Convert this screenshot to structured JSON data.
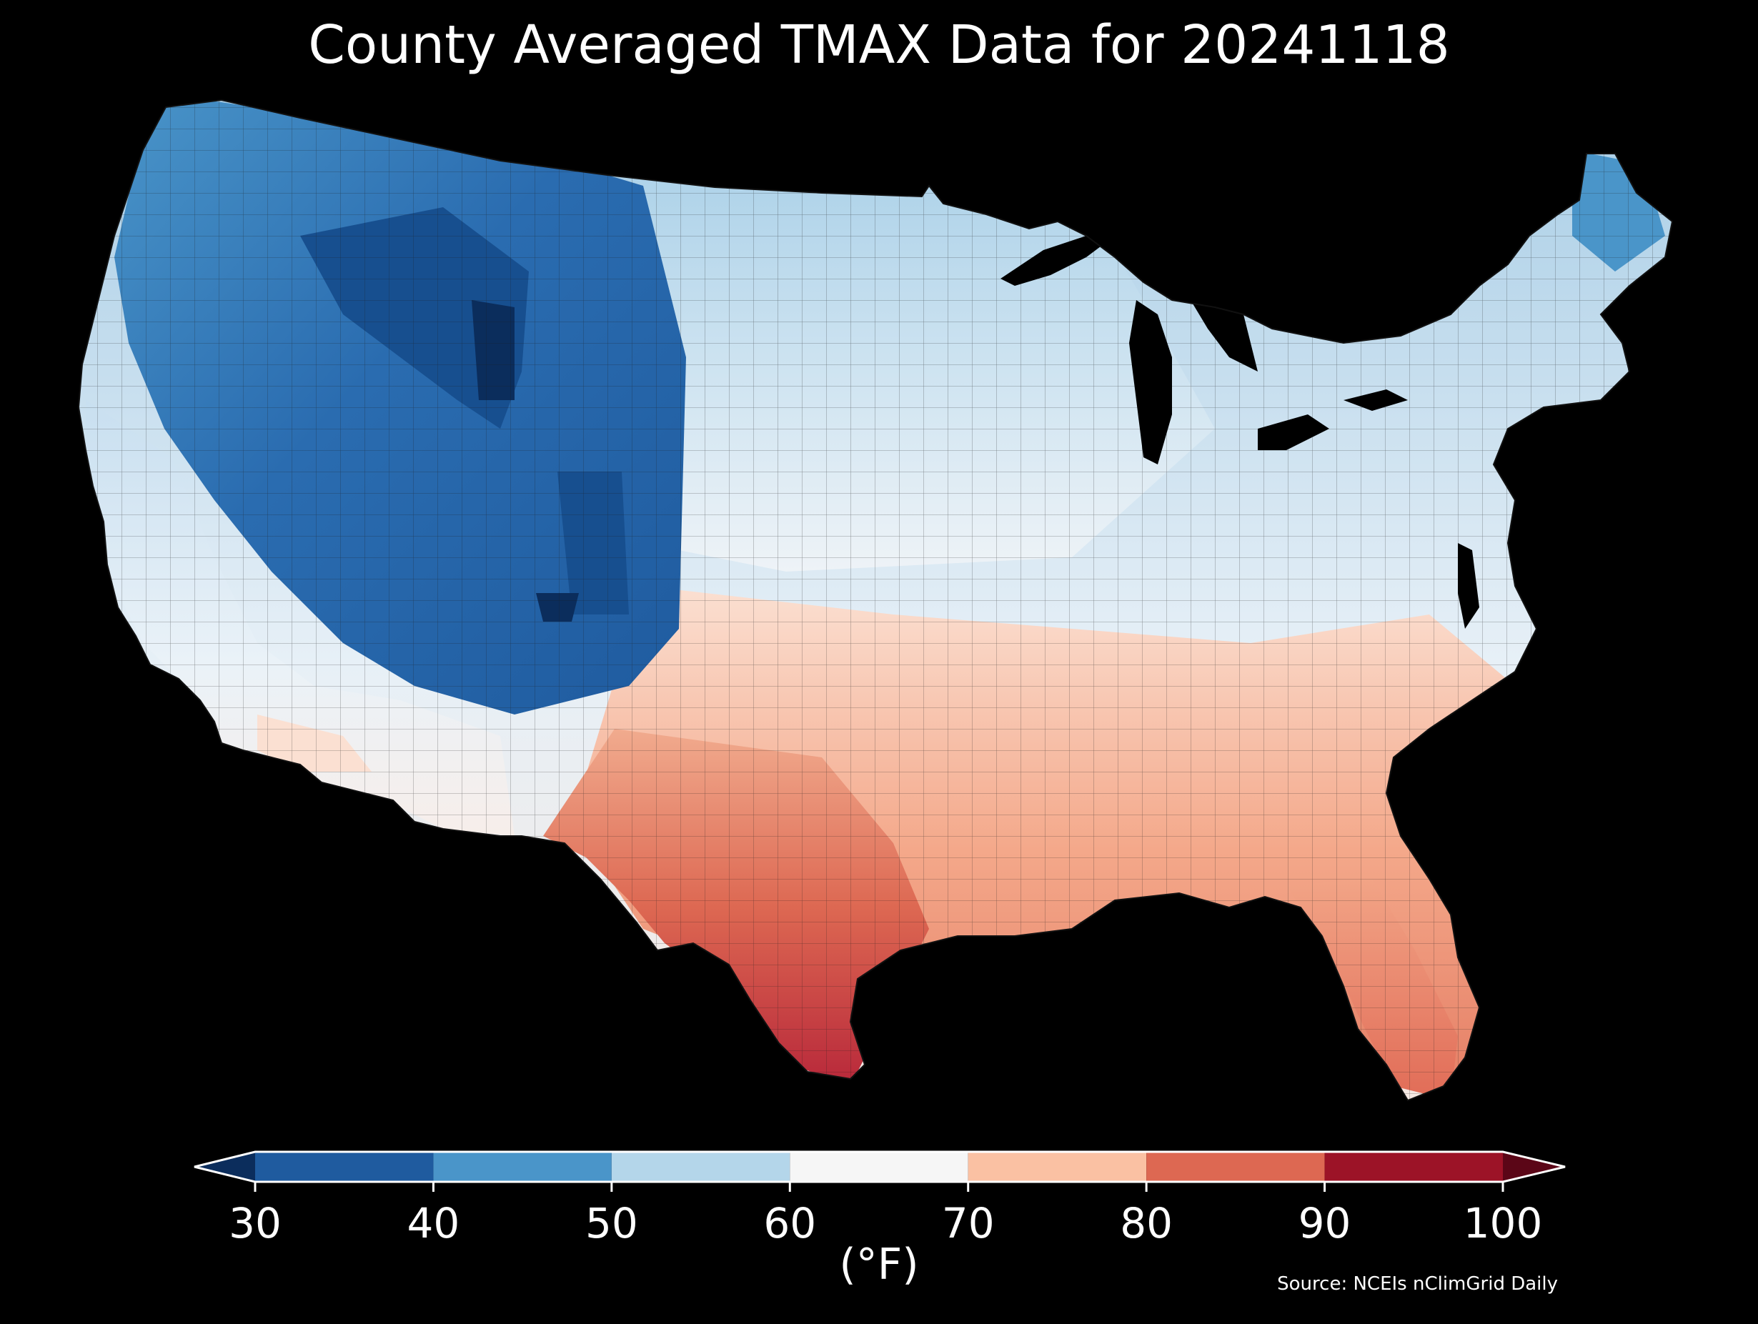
{
  "title": "County Averaged TMAX Data for 20241118",
  "colorbar": {
    "ticks": [
      "30",
      "40",
      "50",
      "60",
      "70",
      "80",
      "90",
      "100"
    ],
    "colors": {
      "under": "#0b2d5c",
      "bins": [
        "#1f5b9f",
        "#4a95c9",
        "#b4d6ea",
        "#f6f6f6",
        "#fac1a3",
        "#dd6852",
        "#9c1327"
      ],
      "over": "#5b0617"
    },
    "units": "(°F)"
  },
  "source": "Source: NCEIs nClimGrid Daily",
  "map": {
    "region": "contiguous-us-counties",
    "colors": {
      "ocean": "#000000",
      "great-lakes": "#000000",
      "county-border": "#1a1a1a"
    }
  }
}
